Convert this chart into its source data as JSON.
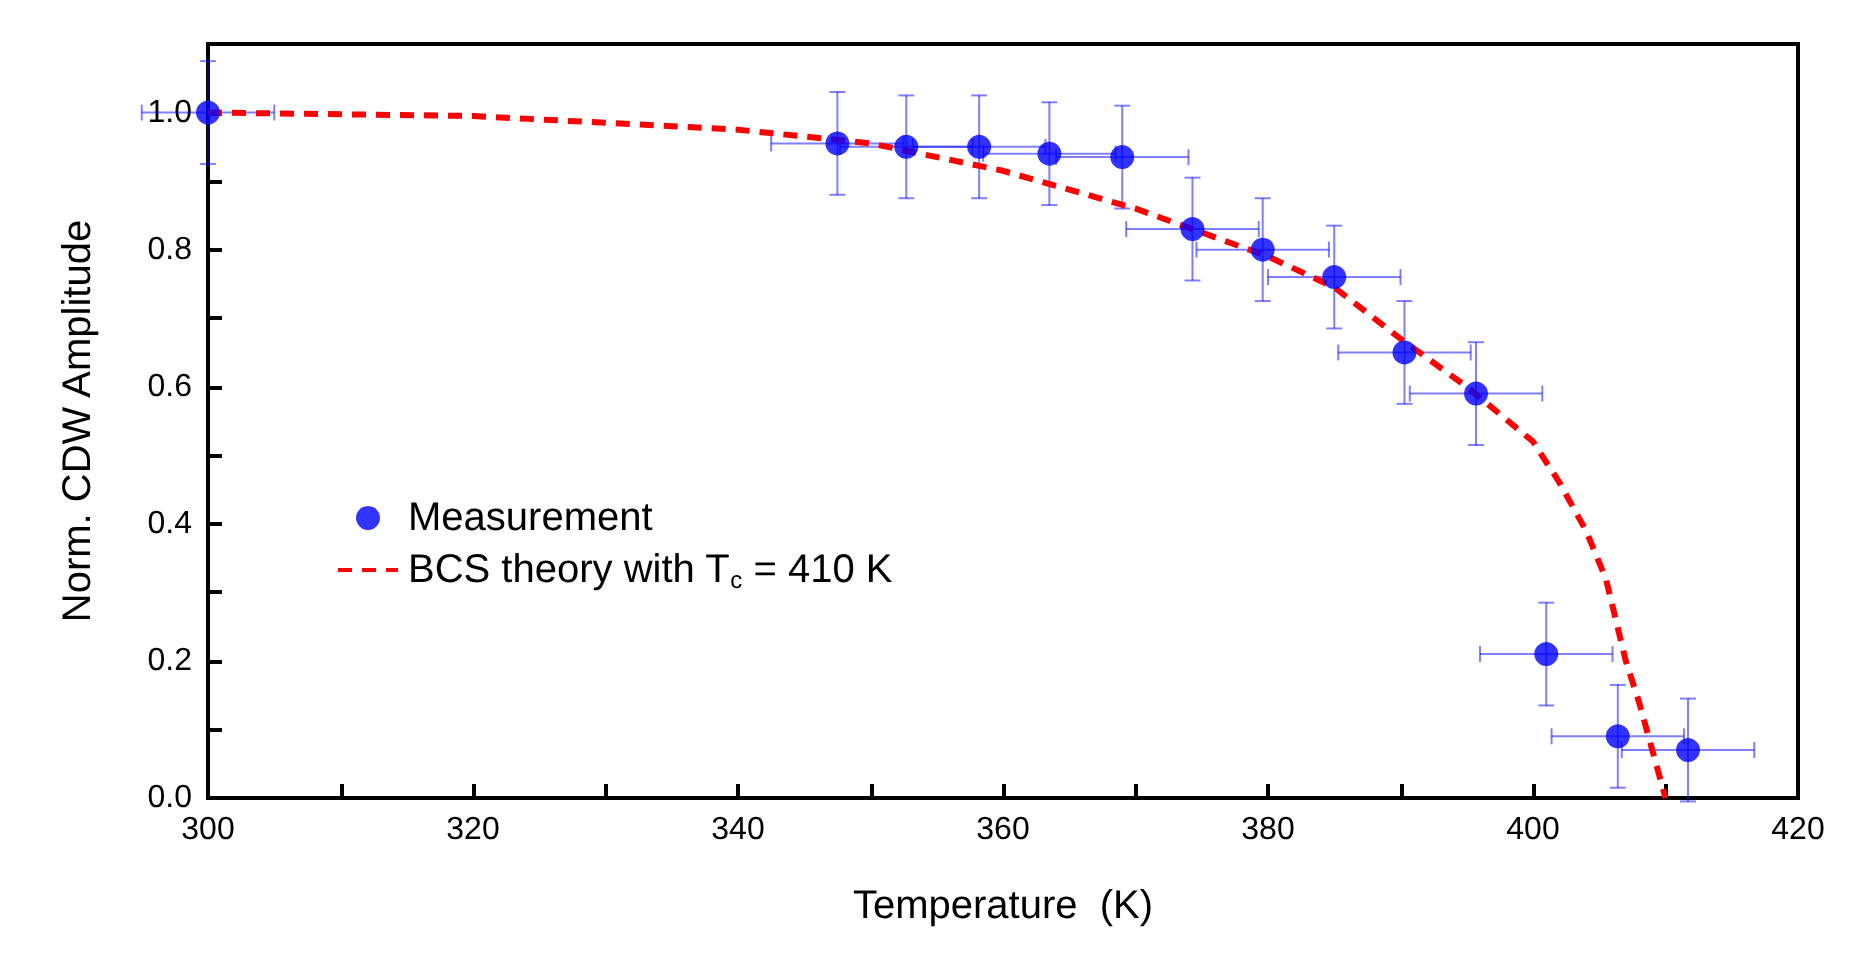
{
  "chart_data": {
    "type": "scatter",
    "xlabel": "Temperature  (K)",
    "ylabel": "Norm. CDW Amplitude",
    "xlim": [
      300,
      420
    ],
    "ylim": [
      0,
      1.1
    ],
    "xticks": [
      300,
      320,
      340,
      360,
      380,
      400,
      420
    ],
    "yticks": [
      {
        "value": 0,
        "label": "0.0"
      },
      {
        "value": 0.2,
        "label": "0.2"
      },
      {
        "value": 0.4,
        "label": "0.4"
      },
      {
        "value": 0.6,
        "label": "0.6"
      },
      {
        "value": 0.8,
        "label": "0.8"
      },
      {
        "value": 1,
        "label": "1.0"
      }
    ],
    "grid": false,
    "legend": "left",
    "series": [
      {
        "name": "Measurement",
        "type": "scatter",
        "color": "#0000ff",
        "marker": "circle",
        "x": [
          300,
          347.5,
          352.7,
          358.2,
          363.5,
          369,
          374.3,
          379.6,
          385,
          390.3,
          395.7,
          401,
          406.4,
          411.7
        ],
        "values": [
          1.0,
          0.955,
          0.95,
          0.95,
          0.94,
          0.935,
          0.83,
          0.8,
          0.76,
          0.65,
          0.59,
          0.21,
          0.09,
          0.07
        ],
        "errors": [
          0.075,
          0.075,
          0.075,
          0.075,
          0.075,
          0.075,
          0.075,
          0.075,
          0.075,
          0.075,
          0.075,
          0.075,
          0.075,
          0.075
        ],
        "xerrors": [
          5,
          5,
          5,
          5,
          5,
          5,
          5,
          5,
          5,
          5,
          5,
          5,
          5,
          5
        ]
      },
      {
        "name": "BCS theory with T$_{c}$ = 410 K",
        "type": "line",
        "color": "#ff0000",
        "line_style": "dashed",
        "marker": "none",
        "x": [
          300,
          320,
          340,
          350,
          360,
          370,
          380,
          385,
          390,
          395,
          400,
          402,
          404,
          405.5,
          407,
          408,
          409,
          410
        ],
        "values": [
          1.0,
          0.995,
          0.975,
          0.955,
          0.915,
          0.86,
          0.79,
          0.745,
          0.67,
          0.6,
          0.52,
          0.46,
          0.39,
          0.32,
          0.2,
          0.14,
          0.07,
          0
        ]
      }
    ]
  }
}
